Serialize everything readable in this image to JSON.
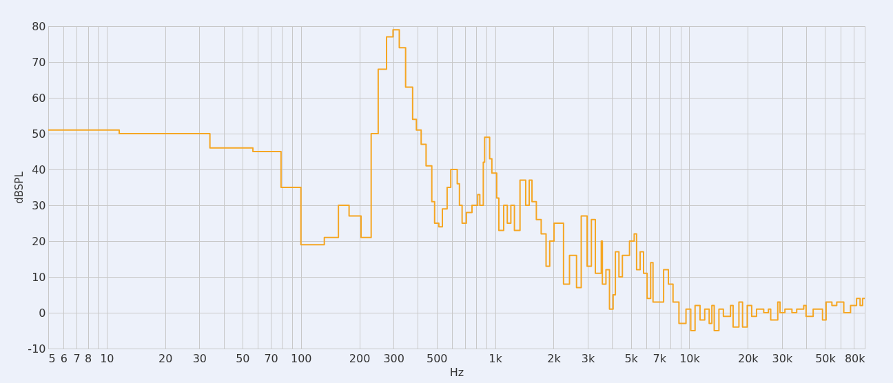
{
  "chart_data": {
    "type": "step",
    "xlabel": "Hz",
    "ylabel": "dBSPL",
    "log": "x",
    "grid": true,
    "marker": "none",
    "line_style": "solid",
    "xlim": [
      5,
      80000
    ],
    "ylim": [
      -10,
      80
    ],
    "xticks": [
      5,
      6,
      7,
      8,
      {
        "value": 9,
        "label": null
      },
      10,
      20,
      30,
      {
        "value": 40,
        "label": null
      },
      50,
      {
        "value": 60,
        "label": null
      },
      70,
      {
        "value": 80,
        "label": null
      },
      {
        "value": 90,
        "label": null
      },
      100,
      200,
      300,
      {
        "value": 400,
        "label": null
      },
      500,
      {
        "value": 600,
        "label": null
      },
      {
        "value": 700,
        "label": null
      },
      {
        "value": 800,
        "label": null
      },
      {
        "value": 900,
        "label": null
      },
      {
        "value": 1000,
        "label": "1k"
      },
      {
        "value": 2000,
        "label": "2k"
      },
      {
        "value": 3000,
        "label": "3k"
      },
      {
        "value": 4000,
        "label": null
      },
      {
        "value": 5000,
        "label": "5k"
      },
      {
        "value": 6000,
        "label": null
      },
      {
        "value": 7000,
        "label": "7k"
      },
      {
        "value": 8000,
        "label": null
      },
      {
        "value": 9000,
        "label": null
      },
      {
        "value": 10000,
        "label": "10k"
      },
      {
        "value": 20000,
        "label": "20k"
      },
      {
        "value": 30000,
        "label": "30k"
      },
      {
        "value": 40000,
        "label": null
      },
      {
        "value": 50000,
        "label": "50k"
      },
      {
        "value": 60000,
        "label": null
      },
      {
        "value": 70000,
        "label": null
      },
      {
        "value": 80000,
        "label": "80k"
      }
    ],
    "yticks": [
      -10,
      0,
      10,
      20,
      30,
      40,
      50,
      60,
      70,
      80
    ],
    "series": [
      {
        "color": "#f5a623",
        "x": [
          5,
          11.6,
          34,
          56.6,
          79,
          100,
          132,
          156,
          177,
          204,
          230,
          250,
          276,
          298,
          321,
          346,
          376,
          393,
          416,
          441,
          472,
          488,
          513,
          535,
          566,
          591,
          638,
          655,
          676,
          711,
          760,
          813,
          834,
          869,
          883,
          937,
          962,
          1019,
          1045,
          1107,
          1155,
          1205,
          1257,
          1343,
          1437,
          1498,
          1548,
          1630,
          1726,
          1829,
          1910,
          2010,
          2250,
          2415,
          2625,
          2775,
          2975,
          3130,
          3280,
          3520,
          3565,
          3720,
          3880,
          4050,
          4160,
          4340,
          4520,
          4920,
          5200,
          5350,
          5580,
          5810,
          6060,
          6320,
          6500,
          7370,
          7800,
          8240,
          8840,
          9610,
          10170,
          10700,
          11350,
          12000,
          12650,
          13060,
          13430,
          14200,
          14970,
          16290,
          16800,
          18000,
          18790,
          19860,
          20940,
          22180,
          24150,
          25530,
          26240,
          28530,
          29300,
          31050,
          33750,
          35700,
          38800,
          39900,
          43400,
          48500,
          50600,
          54200,
          57400,
          62400,
          67600,
          72600,
          75700,
          78000,
          80000
        ],
        "values": [
          51,
          50,
          46,
          45,
          35,
          19,
          21,
          30,
          27,
          21,
          50,
          68,
          77,
          79,
          74,
          63,
          54,
          51,
          47,
          41,
          31,
          25,
          24,
          29,
          35,
          40,
          36,
          30,
          25,
          28,
          30,
          33,
          30,
          42,
          49,
          43,
          39,
          32,
          23,
          30,
          25,
          30,
          23,
          37,
          30,
          37,
          31,
          26,
          22,
          13,
          20,
          25,
          8,
          16,
          7,
          27,
          13,
          26,
          11,
          20,
          8,
          12,
          1,
          5,
          17,
          10,
          16,
          20,
          22,
          12,
          17,
          11,
          4,
          14,
          3,
          12,
          8,
          3,
          -3,
          1,
          -5,
          2,
          -2,
          1,
          -3,
          2,
          -5,
          1,
          -1,
          2,
          -4,
          3,
          -4,
          2,
          -1,
          1,
          0,
          1,
          -2,
          3,
          0,
          1,
          0,
          1,
          2,
          -1,
          1,
          -2,
          3,
          2,
          3,
          0,
          2,
          4,
          2,
          4,
          4
        ]
      }
    ]
  }
}
